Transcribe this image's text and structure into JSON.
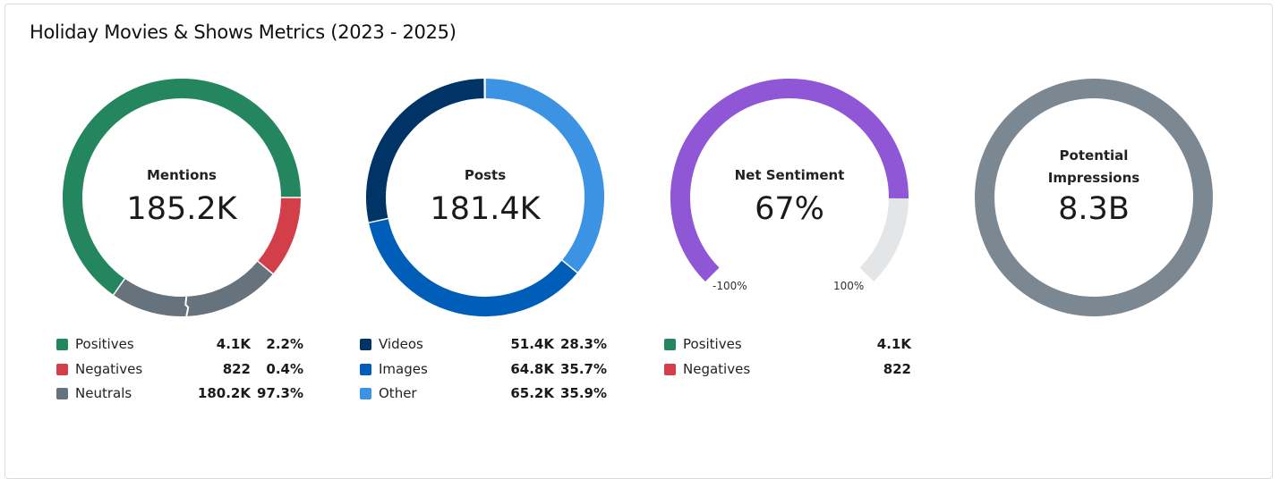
{
  "title": "Holiday Movies & Shows Metrics (2023 - 2025)",
  "colors": {
    "positive": "#23865f",
    "negative": "#d33f49",
    "neutral": "#67737c",
    "videos": "#003366",
    "images": "#005eb8",
    "other": "#3c92e3",
    "sentiment": "#8f56d6",
    "sentiment_track": "#e4e5e7",
    "impressions": "#7b8891"
  },
  "mentions": {
    "label": "Mentions",
    "value": "185.2K",
    "items": [
      {
        "name": "Positives",
        "value": "4.1K",
        "pct": "2.2%",
        "color": "#23865f"
      },
      {
        "name": "Negatives",
        "value": "822",
        "pct": "0.4%",
        "color": "#d33f49"
      },
      {
        "name": "Neutrals",
        "value": "180.2K",
        "pct": "97.3%",
        "color": "#67737c"
      }
    ]
  },
  "posts": {
    "label": "Posts",
    "value": "181.4K",
    "items": [
      {
        "name": "Videos",
        "value": "51.4K",
        "pct": "28.3%",
        "color": "#003366",
        "share": 28.3
      },
      {
        "name": "Images",
        "value": "64.8K",
        "pct": "35.7%",
        "color": "#005eb8",
        "share": 35.7
      },
      {
        "name": "Other",
        "value": "65.2K",
        "pct": "35.9%",
        "color": "#3c92e3",
        "share": 35.9
      }
    ]
  },
  "sentiment": {
    "label": "Net Sentiment",
    "value": "67%",
    "score": 67,
    "min_label": "-100%",
    "max_label": "100%",
    "items": [
      {
        "name": "Positives",
        "value": "4.1K",
        "color": "#23865f"
      },
      {
        "name": "Negatives",
        "value": "822",
        "color": "#d33f49"
      }
    ]
  },
  "impressions": {
    "label_line1": "Potential",
    "label_line2": "Impressions",
    "value": "8.3B"
  }
}
